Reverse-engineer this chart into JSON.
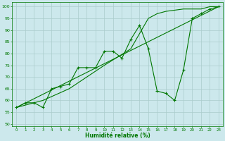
{
  "xlabel": "Humidité relative (%)",
  "background_color": "#cce8ec",
  "grid_color": "#aacccc",
  "line_color": "#007700",
  "xlim": [
    -0.5,
    23.5
  ],
  "ylim": [
    49,
    102
  ],
  "xticks": [
    0,
    1,
    2,
    3,
    4,
    5,
    6,
    7,
    8,
    9,
    10,
    11,
    12,
    13,
    14,
    15,
    16,
    17,
    18,
    19,
    20,
    21,
    22,
    23
  ],
  "yticks": [
    50,
    55,
    60,
    65,
    70,
    75,
    80,
    85,
    90,
    95,
    100
  ],
  "line_zigzag_x": [
    0,
    1,
    2,
    3,
    4,
    5,
    6,
    7,
    8,
    9,
    10,
    11,
    12,
    13,
    14,
    15,
    16,
    17,
    18,
    19,
    20,
    21,
    22,
    23
  ],
  "line_zigzag_y": [
    57,
    59,
    59,
    57,
    65,
    66,
    67,
    74,
    74,
    74,
    81,
    81,
    78,
    86,
    92,
    82,
    64,
    63,
    60,
    73,
    95,
    97,
    99,
    100
  ],
  "line_trend1_x": [
    0,
    23
  ],
  "line_trend1_y": [
    57,
    100
  ],
  "line_trend2_x": [
    0,
    3,
    6,
    10,
    13,
    15,
    16,
    17,
    19,
    20,
    21,
    22,
    23
  ],
  "line_trend2_y": [
    57,
    60,
    65,
    75,
    82,
    95,
    97,
    98,
    99,
    99,
    99,
    100,
    100
  ]
}
